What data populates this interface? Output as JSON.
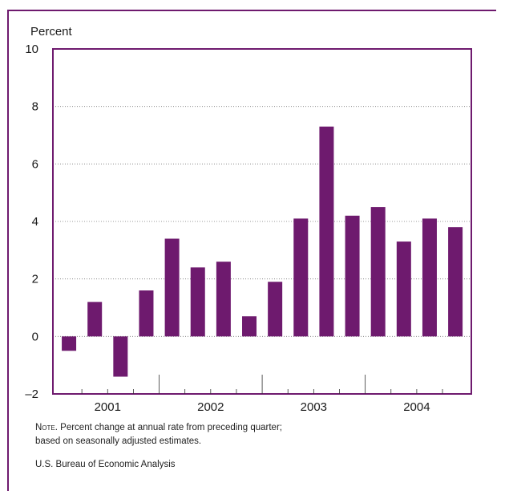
{
  "chart_data": {
    "type": "bar",
    "ylabel": "Percent",
    "ylim": [
      -2,
      10
    ],
    "yticks": [
      -2,
      0,
      2,
      4,
      6,
      8,
      10
    ],
    "ytick_labels": [
      "–2",
      "0",
      "2",
      "4",
      "6",
      "8",
      "10"
    ],
    "grid": true,
    "color": "#6e1a6e",
    "categories": [
      "2001 Q1",
      "2001 Q2",
      "2001 Q3",
      "2001 Q4",
      "2002 Q1",
      "2002 Q2",
      "2002 Q3",
      "2002 Q4",
      "2003 Q1",
      "2003 Q2",
      "2003 Q3",
      "2003 Q4",
      "2004 Q1",
      "2004 Q2",
      "2004 Q3",
      "2004 Q4"
    ],
    "values": [
      -0.5,
      1.2,
      -1.4,
      1.6,
      3.4,
      2.4,
      2.6,
      0.7,
      1.9,
      4.1,
      7.3,
      4.2,
      4.5,
      3.3,
      4.1,
      3.8
    ],
    "year_labels": [
      "2001",
      "2002",
      "2003",
      "2004"
    ]
  },
  "note": {
    "prefix": "Note",
    "line1": ". Percent change at annual rate from preceding quarter;",
    "line2": "based on seasonally adjusted estimates."
  },
  "source": "U.S. Bureau of Economic Analysis"
}
